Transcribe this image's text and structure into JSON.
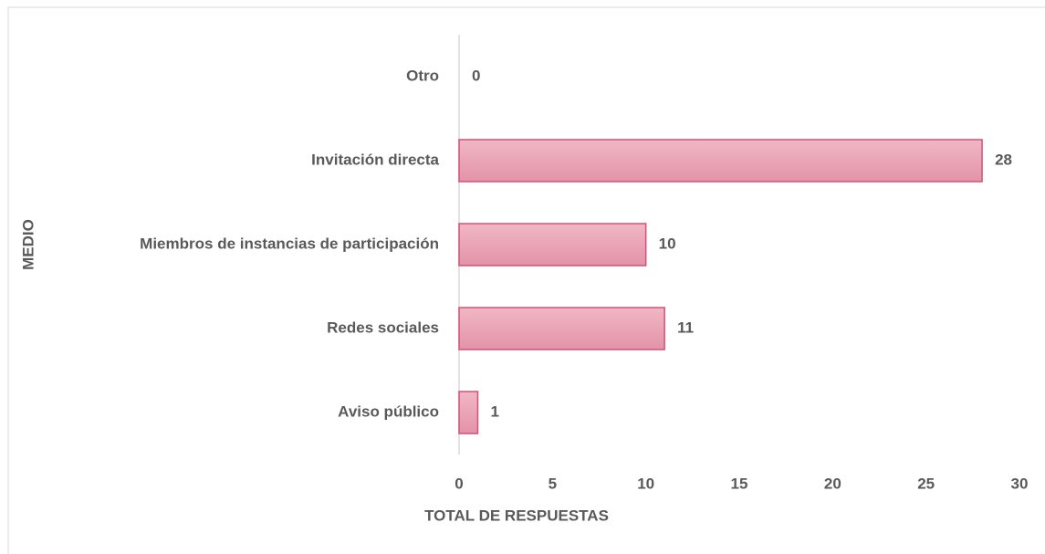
{
  "chart_data": {
    "type": "bar",
    "orientation": "horizontal",
    "xlabel": "TOTAL DE RESPUESTAS",
    "ylabel": "MEDIO",
    "categories": [
      "Otro",
      "Invitación directa",
      "Miembros de instancias de participación",
      "Redes sociales",
      "Aviso público"
    ],
    "values": [
      0,
      28,
      10,
      11,
      1
    ],
    "color": "#e9a3b4",
    "edge_color": "#d4507a",
    "xlim": [
      0,
      30
    ],
    "xticks": [
      0,
      5,
      10,
      15,
      20,
      25,
      30
    ],
    "grid": false
  }
}
